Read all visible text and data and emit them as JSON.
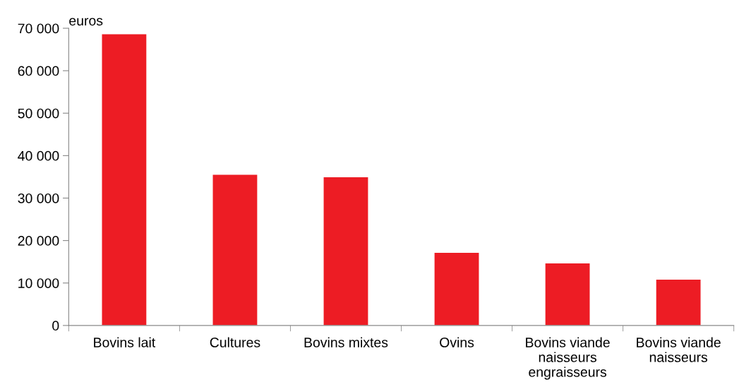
{
  "chart_data": {
    "type": "bar",
    "ylabel": "euros",
    "categories": [
      "Bovins lait",
      "Cultures",
      "Bovins mixtes",
      "Ovins",
      "Bovins viande\nnaisseurs\nengraisseurs",
      "Bovins viande\nnaisseurs"
    ],
    "values": [
      68600,
      35500,
      34900,
      17100,
      14600,
      10800
    ],
    "color": "#ed1c24",
    "ylim": [
      0,
      70000
    ],
    "yticks": [
      {
        "value": 0,
        "label": "0"
      },
      {
        "value": 10000,
        "label": "10 000"
      },
      {
        "value": 20000,
        "label": "20 000"
      },
      {
        "value": 30000,
        "label": "30 000"
      },
      {
        "value": 40000,
        "label": "40 000"
      },
      {
        "value": 50000,
        "label": "50 000"
      },
      {
        "value": 60000,
        "label": "60 000"
      },
      {
        "value": 70000,
        "label": "70 000"
      }
    ],
    "grid": false,
    "legend": false
  }
}
